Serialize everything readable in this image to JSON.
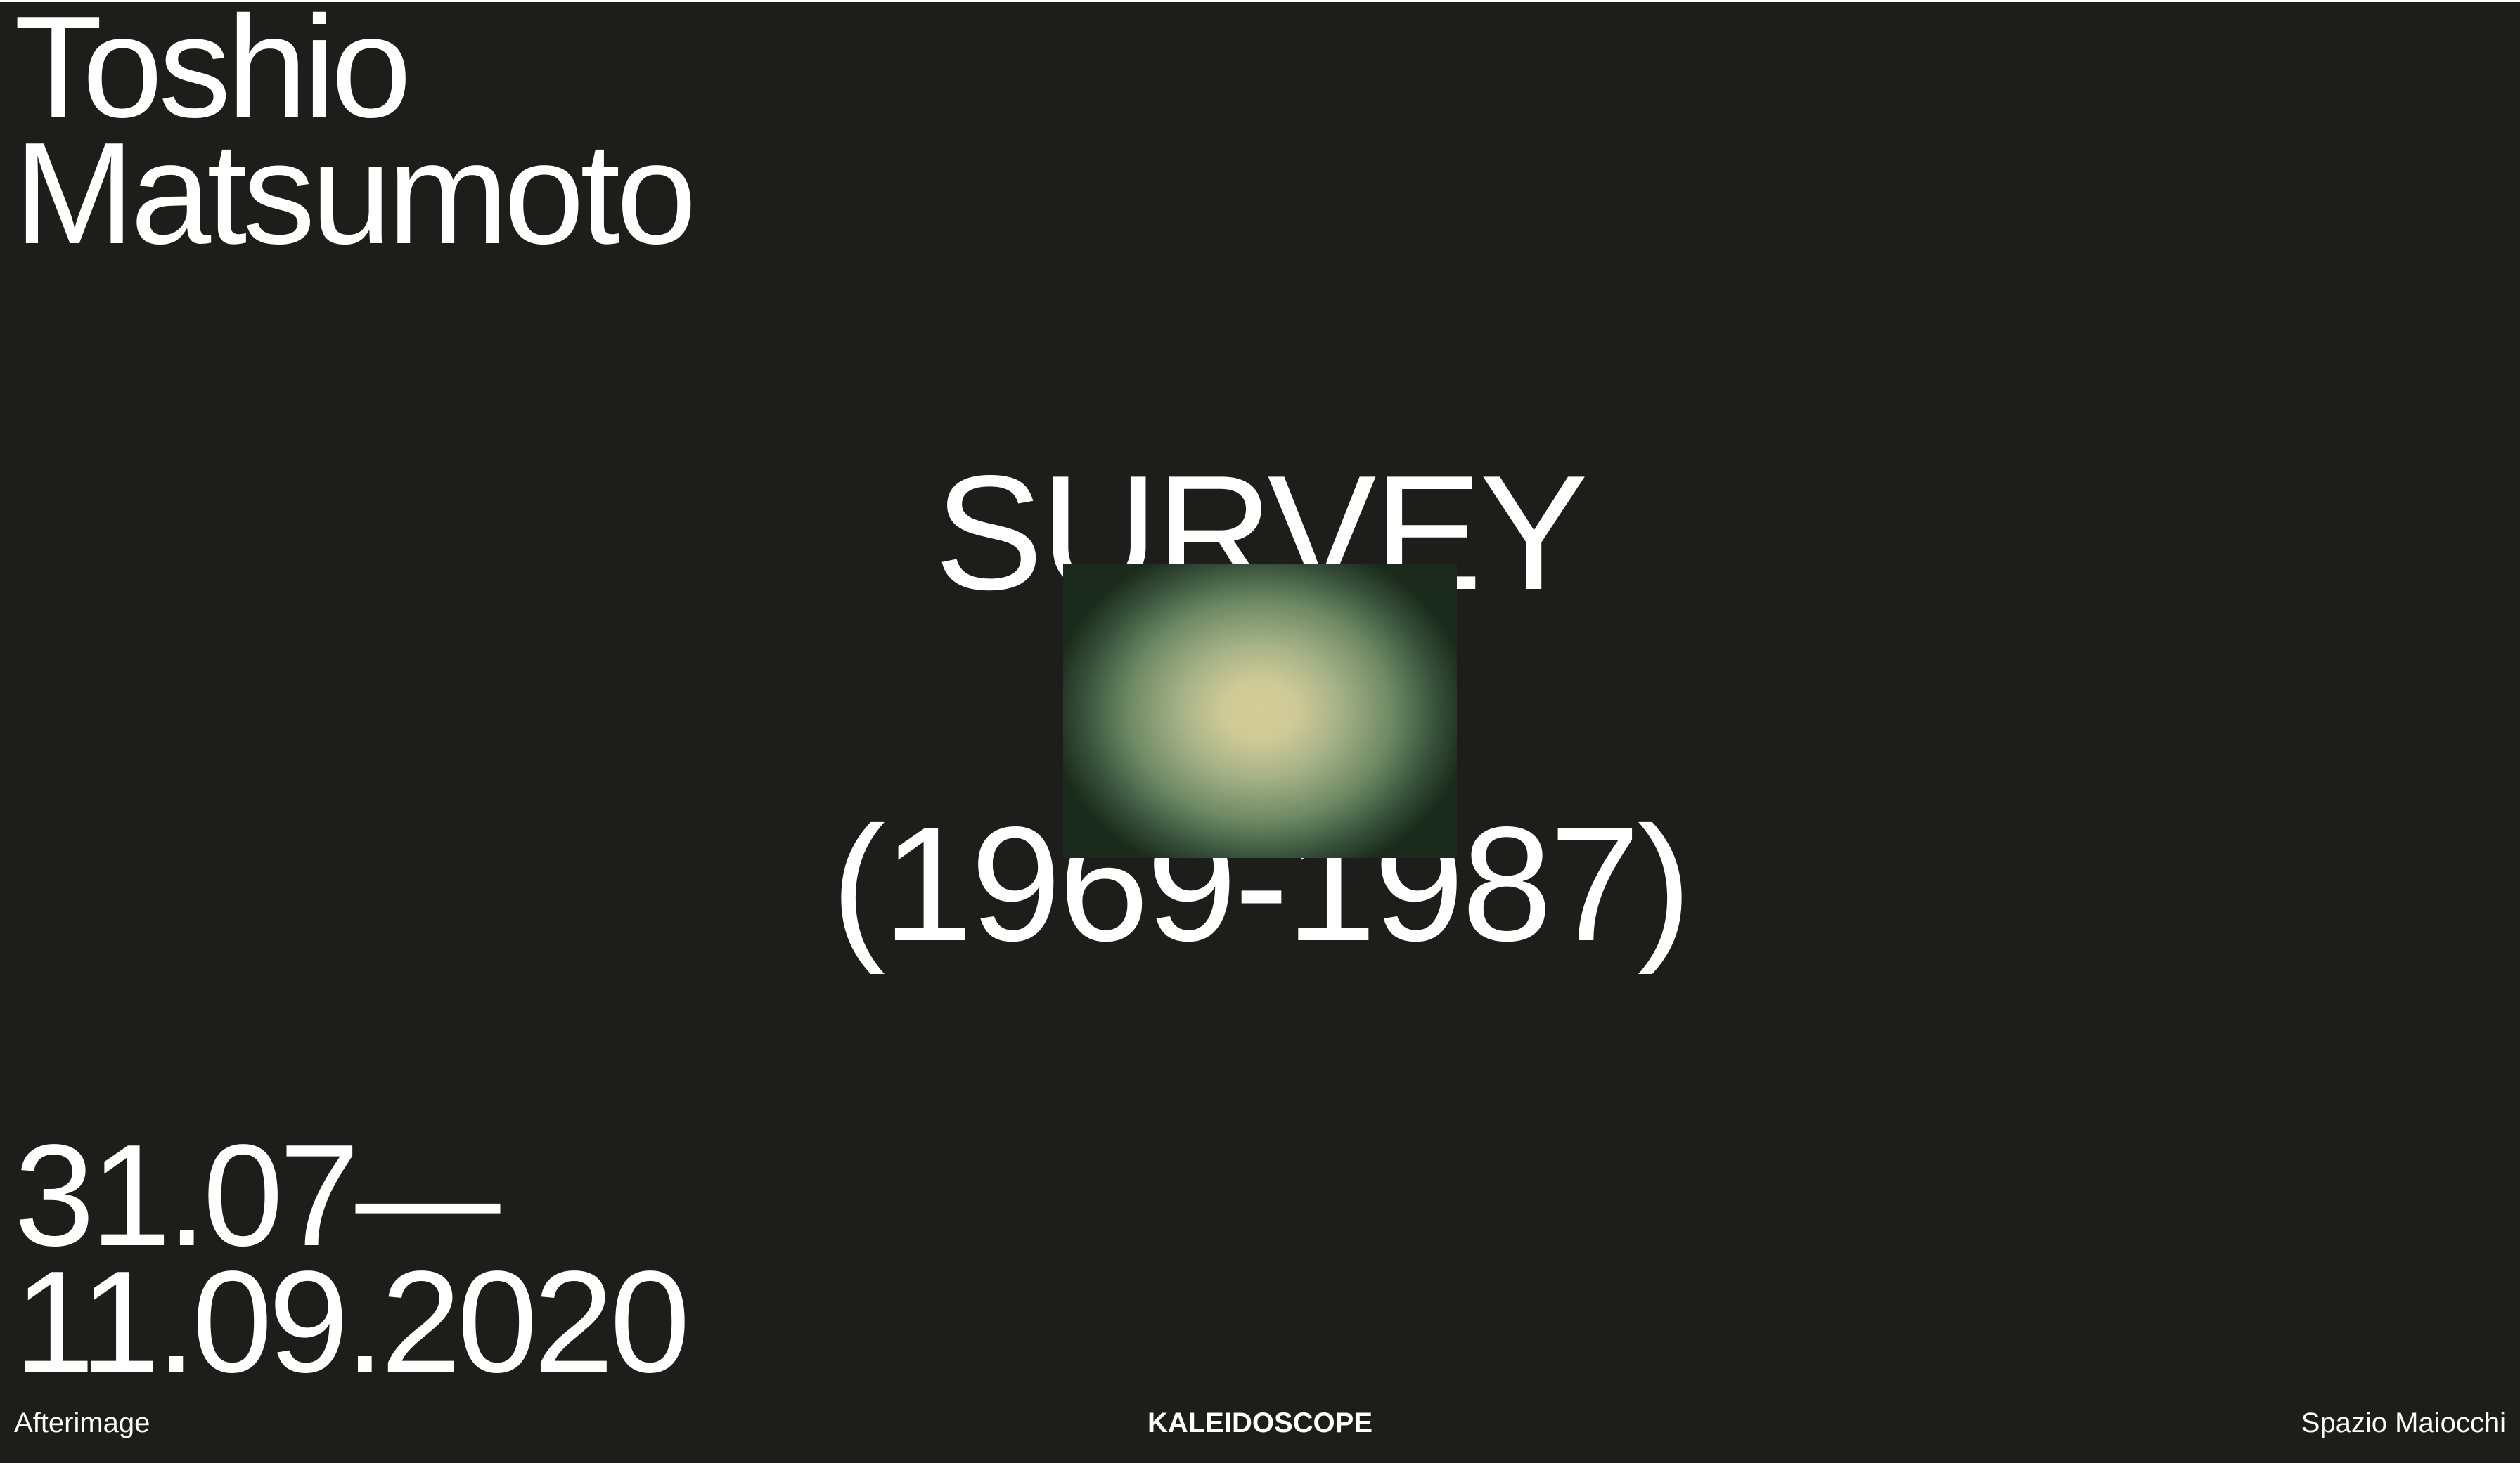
{
  "artist": {
    "first_name": "Toshio",
    "last_name": "Matsumoto"
  },
  "feature": {
    "title": "SURVEY",
    "years": "(1969-1987)",
    "image_colors": {
      "center": "#d3cd98",
      "edge": "#1a2a1c"
    }
  },
  "dates": {
    "start": "31.07—",
    "end": "11.09.2020"
  },
  "footer": {
    "left_link": "Afterimage",
    "center_link": "KALEIDOSCOPE",
    "right_link": "Spazio Maiocchi"
  },
  "colors": {
    "background": "#1d1d1b",
    "text": "#ffffff"
  }
}
